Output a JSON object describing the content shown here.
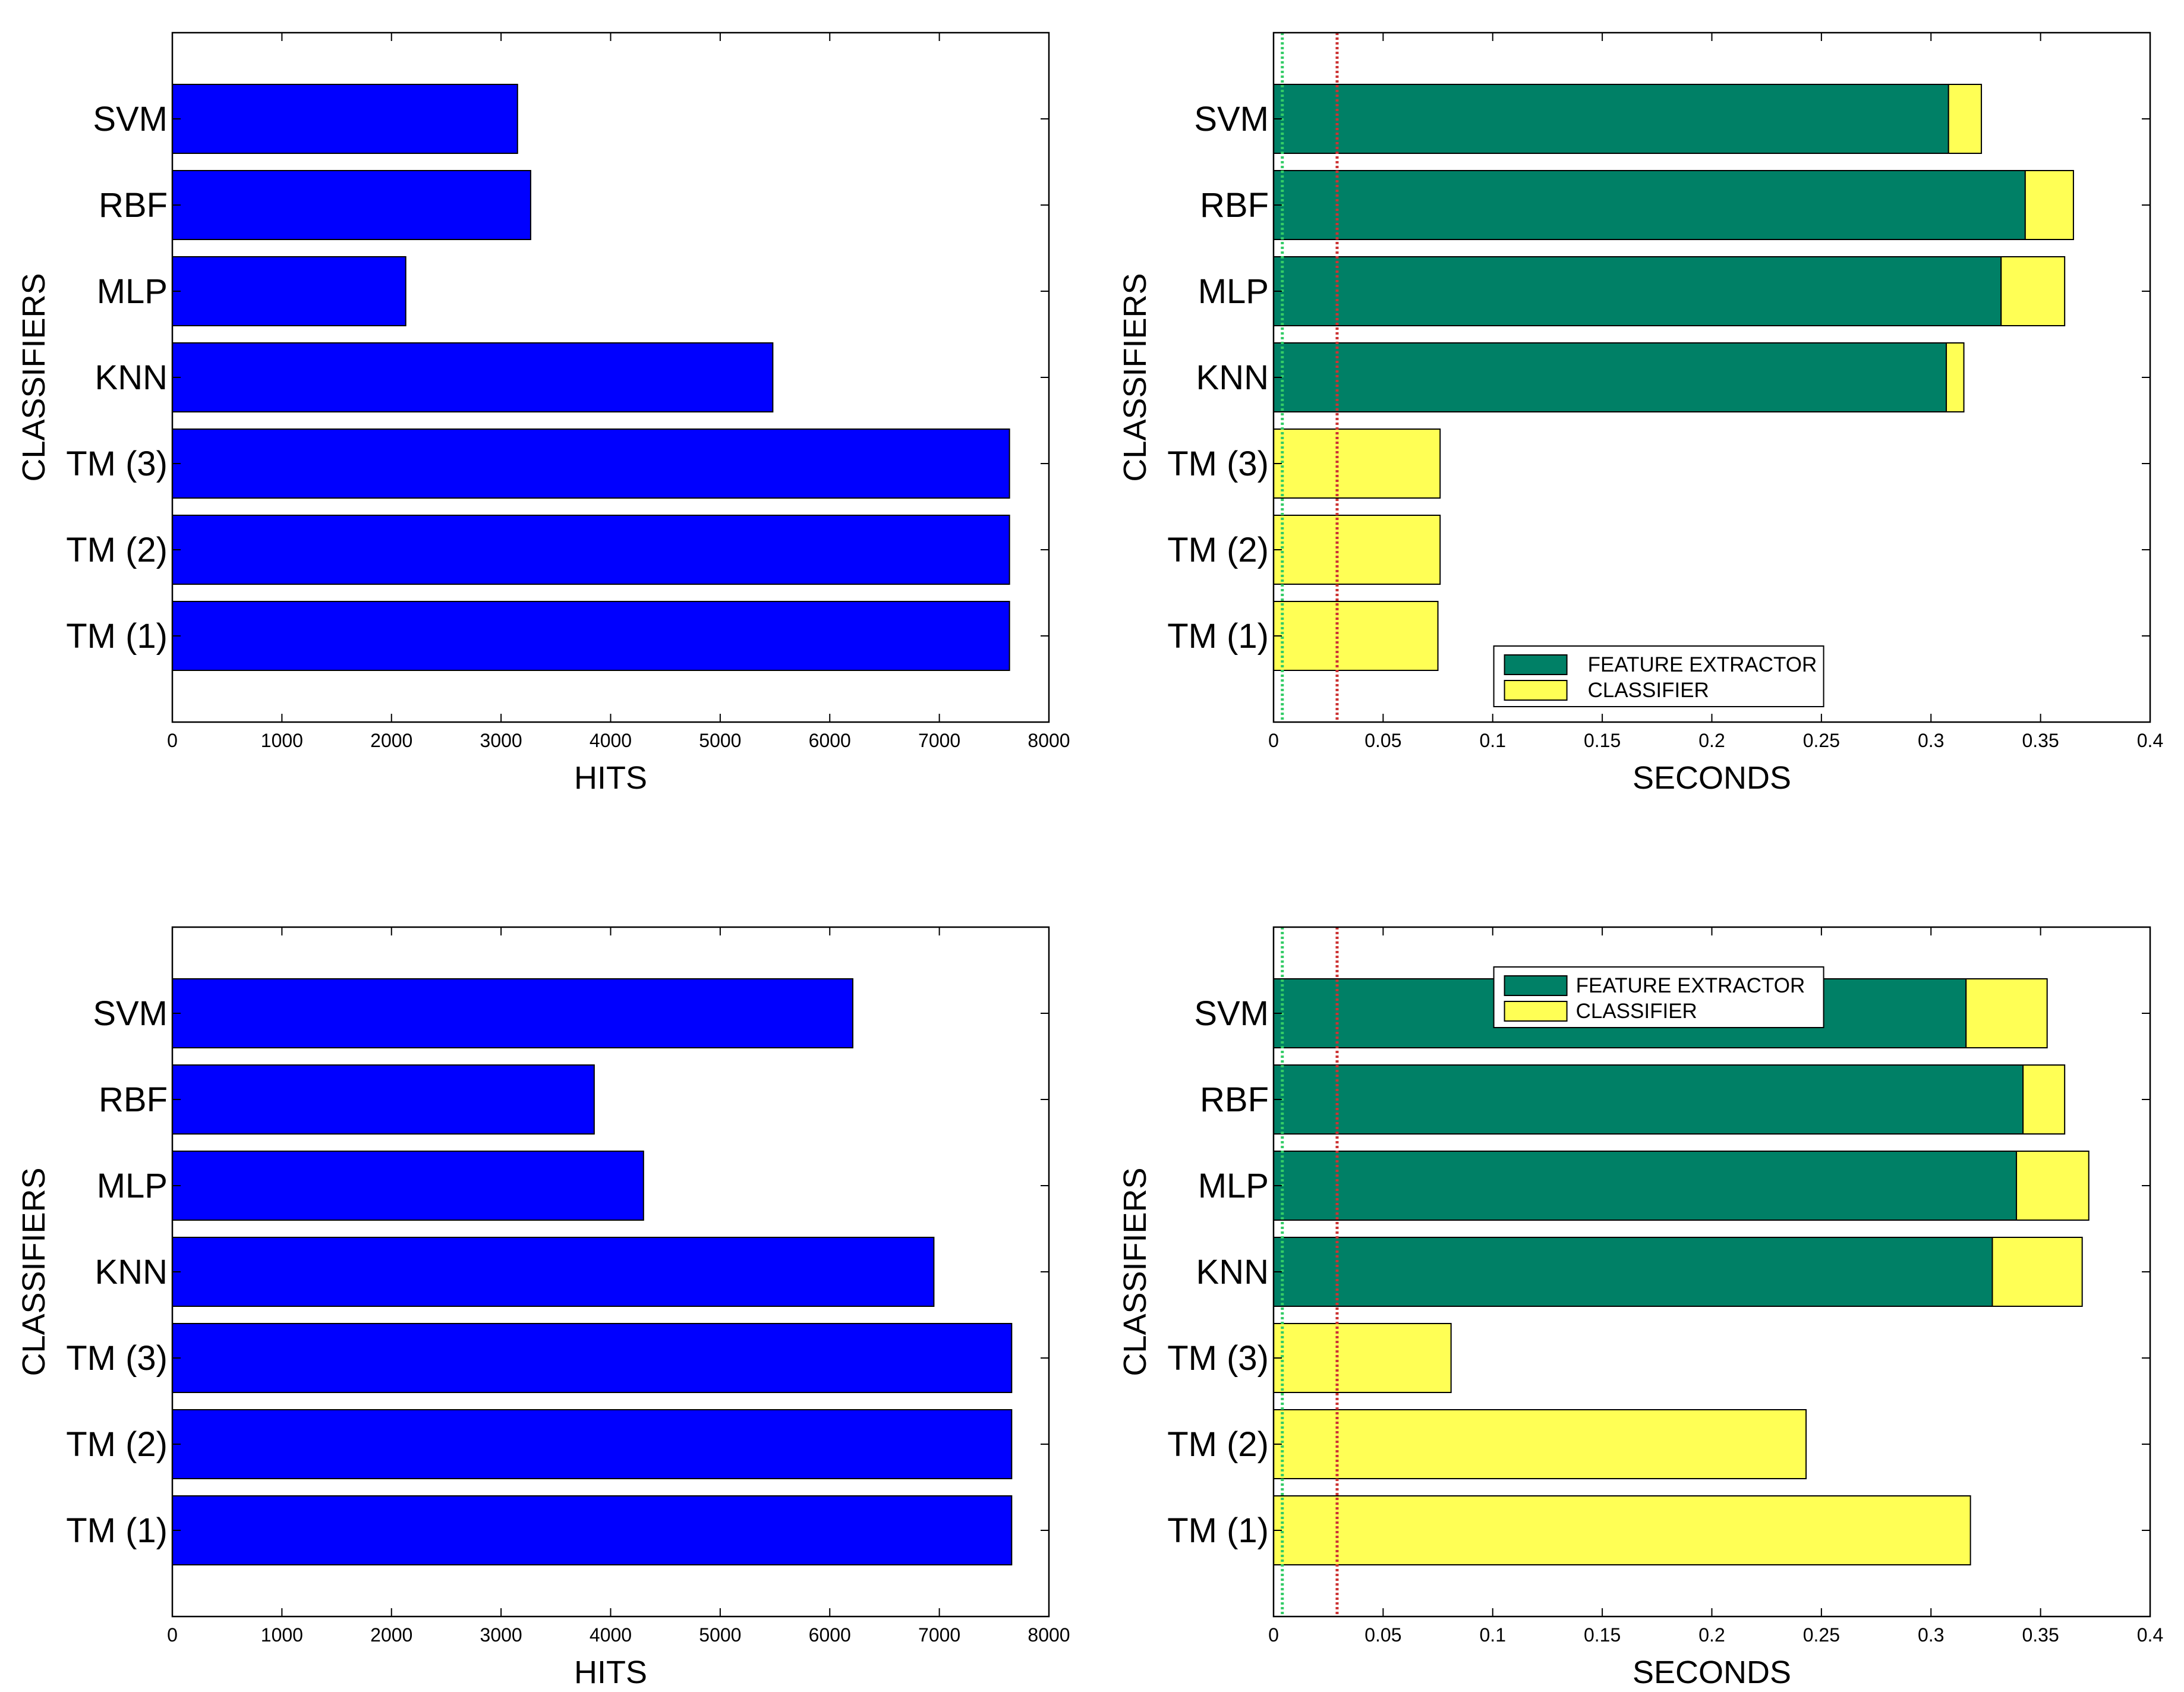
{
  "colors": {
    "hits_bar": "#0000FF",
    "feature_extractor": "#008066",
    "classifier": "#FFFF55",
    "green_reference_line": "#33CC66",
    "red_reference_line": "#CC3333"
  },
  "chart_data": [
    {
      "id": "top-left",
      "type": "bar",
      "orientation": "horizontal",
      "title": "",
      "categories": [
        "SVM",
        "RBF",
        "MLP",
        "KNN",
        "TM (3)",
        "TM (2)",
        "TM (1)"
      ],
      "values": [
        3150,
        3270,
        2130,
        5480,
        7640,
        7640,
        7640
      ],
      "xlabel": "HITS",
      "ylabel": "CLASSIFIERS",
      "xlim": [
        0,
        8000
      ],
      "xticks": [
        0,
        1000,
        2000,
        3000,
        4000,
        5000,
        6000,
        7000,
        8000
      ],
      "xtick_labels": [
        "0",
        "1000",
        "2000",
        "3000",
        "4000",
        "5000",
        "6000",
        "7000",
        "8000"
      ],
      "grid": false
    },
    {
      "id": "top-right",
      "type": "bar",
      "orientation": "horizontal",
      "stacked": true,
      "title": "",
      "categories": [
        "SVM",
        "RBF",
        "MLP",
        "KNN",
        "TM (3)",
        "TM (2)",
        "TM (1)"
      ],
      "series": [
        {
          "name": "FEATURE EXTRACTOR",
          "values": [
            0.308,
            0.343,
            0.332,
            0.307,
            0,
            0,
            0
          ]
        },
        {
          "name": "CLASSIFIER",
          "values": [
            0.015,
            0.022,
            0.029,
            0.008,
            0.076,
            0.076,
            0.075
          ]
        }
      ],
      "reference_lines": [
        0.004,
        0.029
      ],
      "xlabel": "SECONDS",
      "ylabel": "CLASSIFIERS",
      "xlim": [
        0,
        0.4
      ],
      "xticks": [
        0,
        0.05,
        0.1,
        0.15,
        0.2,
        0.25,
        0.3,
        0.35,
        0.4
      ],
      "xtick_labels": [
        "0",
        "0.05",
        "0.1",
        "0.15",
        "0.2",
        "0.25",
        "0.3",
        "0.35",
        "0.4"
      ],
      "legend": [
        "FEATURE EXTRACTOR",
        "CLASSIFIER"
      ],
      "legend_position": "bottom-center",
      "grid": false
    },
    {
      "id": "bottom-left",
      "type": "bar",
      "orientation": "horizontal",
      "title": "",
      "categories": [
        "SVM",
        "RBF",
        "MLP",
        "KNN",
        "TM (3)",
        "TM (2)",
        "TM (1)"
      ],
      "values": [
        6210,
        3850,
        4300,
        6950,
        7660,
        7660,
        7660
      ],
      "xlabel": "HITS",
      "ylabel": "CLASSIFIERS",
      "xlim": [
        0,
        8000
      ],
      "xticks": [
        0,
        1000,
        2000,
        3000,
        4000,
        5000,
        6000,
        7000,
        8000
      ],
      "xtick_labels": [
        "0",
        "1000",
        "2000",
        "3000",
        "4000",
        "5000",
        "6000",
        "7000",
        "8000"
      ],
      "grid": false
    },
    {
      "id": "bottom-right",
      "type": "bar",
      "orientation": "horizontal",
      "stacked": true,
      "title": "",
      "categories": [
        "SVM",
        "RBF",
        "MLP",
        "KNN",
        "TM (3)",
        "TM (2)",
        "TM (1)"
      ],
      "series": [
        {
          "name": "FEATURE EXTRACTOR",
          "values": [
            0.316,
            0.342,
            0.339,
            0.328,
            0,
            0,
            0
          ]
        },
        {
          "name": "CLASSIFIER",
          "values": [
            0.037,
            0.019,
            0.033,
            0.041,
            0.081,
            0.243,
            0.318
          ]
        }
      ],
      "reference_lines": [
        0.004,
        0.029
      ],
      "xlabel": "SECONDS",
      "ylabel": "CLASSIFIERS",
      "xlim": [
        0,
        0.4
      ],
      "xticks": [
        0,
        0.05,
        0.1,
        0.15,
        0.2,
        0.25,
        0.3,
        0.35,
        0.4
      ],
      "xtick_labels": [
        "0",
        "0.05",
        "0.1",
        "0.15",
        "0.2",
        "0.25",
        "0.3",
        "0.35",
        "0.4"
      ],
      "legend": [
        "FEATURE EXTRACTOR",
        "CLASSIFIER"
      ],
      "legend_position": "top-center",
      "grid": false
    }
  ]
}
